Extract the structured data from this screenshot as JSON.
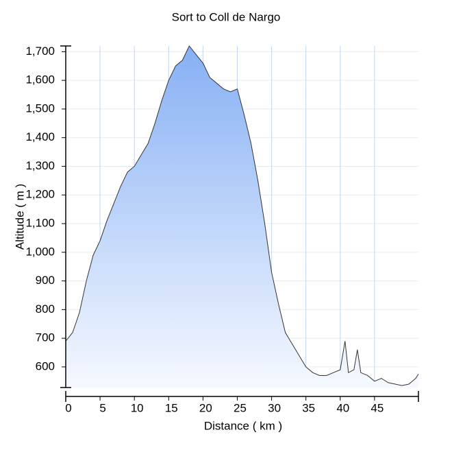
{
  "chart_data": {
    "type": "area",
    "title": "Sort to Coll de Nargo",
    "x_label": "Distance ( km )",
    "y_label": "Altitude ( m )",
    "x": [
      0,
      1,
      2,
      3,
      4,
      5,
      6,
      7,
      8,
      9,
      10,
      11,
      12,
      13,
      14,
      15,
      16,
      17,
      18,
      19,
      20,
      21,
      22,
      23,
      24,
      25,
      26,
      27,
      28,
      29,
      30,
      31,
      32,
      33,
      34,
      35,
      36,
      37,
      38,
      39,
      40,
      40.7,
      41.2,
      42,
      42.5,
      43,
      44,
      45,
      46,
      47,
      48,
      49,
      50,
      51,
      51.4
    ],
    "values": [
      690,
      720,
      790,
      900,
      990,
      1040,
      1110,
      1170,
      1230,
      1280,
      1300,
      1340,
      1380,
      1450,
      1530,
      1600,
      1650,
      1670,
      1720,
      1690,
      1660,
      1610,
      1590,
      1570,
      1560,
      1570,
      1480,
      1380,
      1250,
      1100,
      930,
      820,
      720,
      680,
      640,
      600,
      580,
      570,
      570,
      580,
      590,
      690,
      580,
      590,
      660,
      580,
      570,
      550,
      560,
      545,
      540,
      535,
      540,
      560,
      575
    ],
    "color": "#8fb6f5",
    "xlim": [
      0,
      51.4
    ],
    "ylim": [
      528,
      1720
    ],
    "xticks": [
      0,
      5,
      10,
      15,
      20,
      25,
      30,
      35,
      40,
      45
    ],
    "yticks": [
      600,
      700,
      800,
      900,
      {
        "value": 1000,
        "label": "1,000"
      },
      {
        "value": 1100,
        "label": "1,100"
      },
      {
        "value": 1200,
        "label": "1,200"
      },
      {
        "value": 1300,
        "label": "1,300"
      },
      {
        "value": 1400,
        "label": "1,400"
      },
      {
        "value": 1500,
        "label": "1,500"
      },
      {
        "value": 1600,
        "label": "1,600"
      },
      {
        "value": 1700,
        "label": "1,700"
      }
    ],
    "grid": true
  }
}
